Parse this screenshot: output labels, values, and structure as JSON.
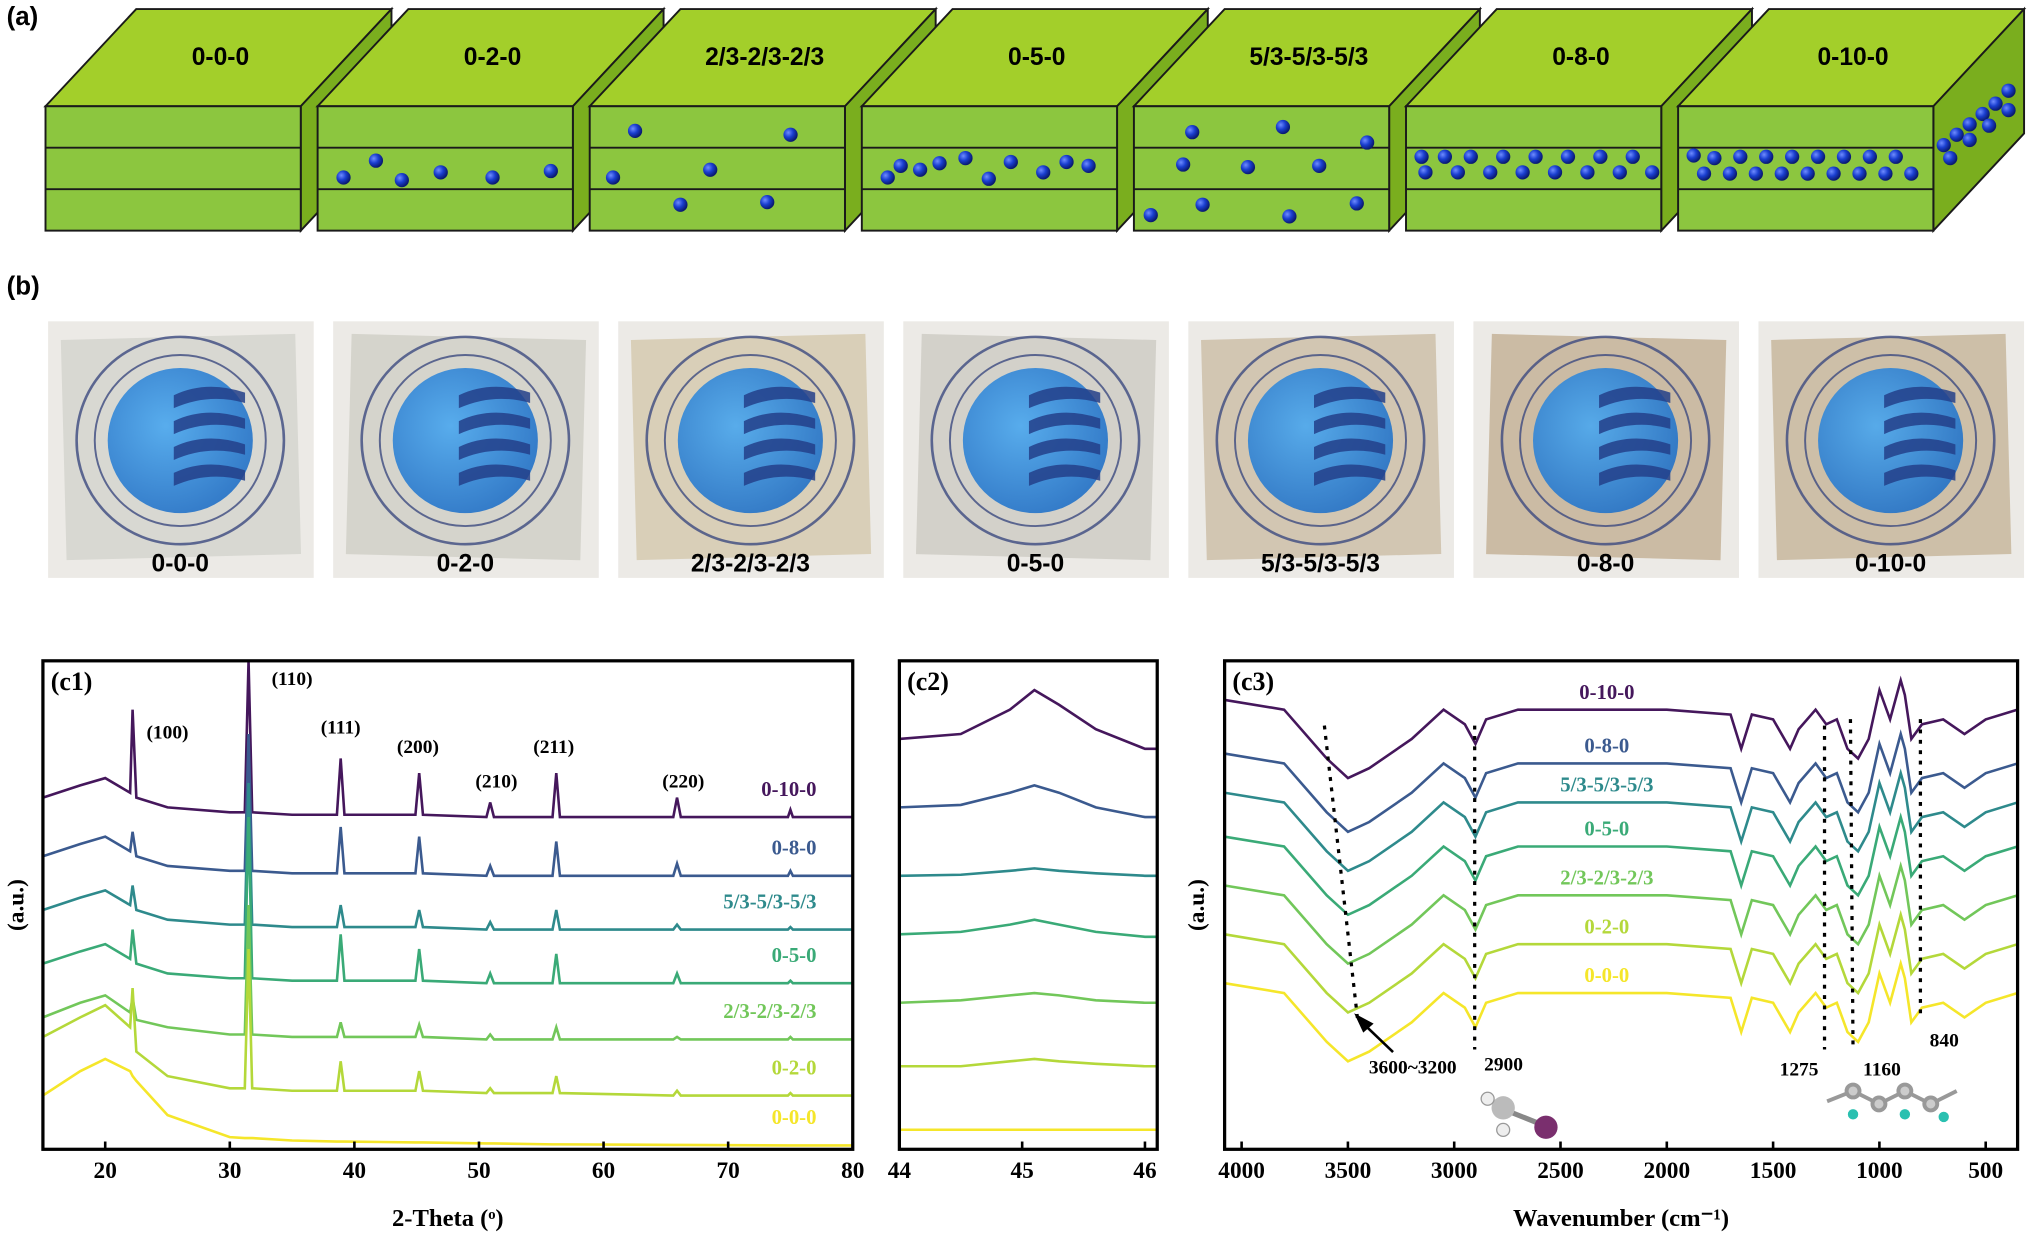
{
  "panels": {
    "a": {
      "label": "(a)",
      "blocks": [
        "0-0-0",
        "0-2-0",
        "2/3-2/3-2/3",
        "0-5-0",
        "5/3-5/3-5/3",
        "0-8-0",
        "0-10-0"
      ]
    },
    "b": {
      "label": "(b)",
      "samples": [
        "0-0-0",
        "0-2-0",
        "2/3-2/3-2/3",
        "0-5-0",
        "5/3-5/3-5/3",
        "0-8-0",
        "0-10-0"
      ]
    }
  },
  "chart_data": [
    {
      "type": "line",
      "panel_label": "(c1)",
      "x_label": "2-Theta (ᵒ)",
      "y_label": "(a.u.)",
      "x": [
        15,
        18,
        20,
        22,
        22.2,
        22.5,
        25,
        30,
        31.2,
        31.5,
        31.8,
        35,
        38.6,
        38.9,
        39.2,
        44.9,
        45.2,
        45.5,
        50.6,
        50.9,
        51.2,
        55.9,
        56.2,
        56.5,
        65.6,
        65.9,
        66.2,
        74.8,
        75,
        75.2,
        80
      ],
      "xlim": [
        15,
        80
      ],
      "ylim": [
        0,
        100
      ],
      "xticks": [
        20,
        30,
        40,
        50,
        60,
        70,
        80
      ],
      "series": [
        {
          "name": "0-10-0",
          "color": "#45175c",
          "values": [
            72,
            74.5,
            76,
            73,
            90,
            72,
            70,
            69,
            69,
            100,
            69,
            68.5,
            68.5,
            80,
            68.5,
            68.5,
            77,
            68.5,
            68,
            71,
            68,
            68,
            77,
            68,
            68,
            72,
            68,
            68,
            69.5,
            68,
            68
          ]
        },
        {
          "name": "0-8-0",
          "color": "#3b5a8f",
          "values": [
            60,
            62.5,
            64,
            61,
            65,
            60,
            58,
            57,
            57,
            85,
            57,
            56.5,
            56.5,
            66,
            56.5,
            56.5,
            64,
            56.5,
            56,
            58,
            56,
            56,
            63,
            56,
            56,
            58.5,
            56,
            56,
            57,
            56,
            56
          ]
        },
        {
          "name": "5/3-5/3-5/3",
          "color": "#2e8a8c",
          "values": [
            49,
            51.5,
            53,
            50,
            54,
            49,
            47,
            46,
            46,
            75,
            46,
            45.5,
            45.5,
            50,
            45.5,
            45.5,
            49,
            45.5,
            45,
            46.5,
            45,
            45,
            49,
            45,
            45,
            46,
            45,
            45,
            45.5,
            45,
            45
          ]
        },
        {
          "name": "0-5-0",
          "color": "#3aaa77",
          "values": [
            38,
            40.5,
            42,
            39,
            45,
            38,
            36,
            35,
            35,
            68,
            35,
            34.5,
            34.5,
            44,
            34.5,
            34.5,
            41,
            34.5,
            34,
            36,
            34,
            34,
            40,
            34,
            34,
            36,
            34,
            34,
            34.5,
            34,
            34
          ]
        },
        {
          "name": "2/3-2/3-2/3",
          "color": "#72c75a",
          "values": [
            27,
            30,
            31.5,
            28,
            31,
            26.5,
            25,
            23.5,
            23.5,
            50,
            23.5,
            23,
            23,
            26,
            23,
            23,
            25.5,
            23,
            22.5,
            23.5,
            22.5,
            22.5,
            25,
            22.5,
            22.5,
            23,
            22.5,
            22.5,
            23,
            22.5,
            22.5
          ]
        },
        {
          "name": "0-2-0",
          "color": "#b4d83a",
          "values": [
            23,
            27,
            29.5,
            25,
            33,
            20,
            15,
            12.5,
            12.5,
            41,
            12.5,
            12,
            12,
            18,
            12,
            12,
            16,
            12,
            11.5,
            12.5,
            11.5,
            11.5,
            15,
            11.5,
            11,
            12,
            11,
            11,
            11.5,
            11,
            11
          ]
        },
        {
          "name": "0-0-0",
          "color": "#f5e62a",
          "values": [
            11,
            16,
            18.5,
            16,
            15,
            14,
            7,
            2.5,
            2.3,
            2.3,
            2.3,
            1.8,
            1.6,
            1.6,
            1.6,
            1.4,
            1.4,
            1.4,
            1.2,
            1.2,
            1.2,
            1,
            1,
            1,
            0.9,
            0.9,
            0.9,
            0.8,
            0.8,
            0.8,
            0.8
          ]
        }
      ],
      "annotations": [
        {
          "text": "(100)",
          "x": 25,
          "y": 85
        },
        {
          "text": "(110)",
          "x": 35,
          "y": 96
        },
        {
          "text": "(111)",
          "x": 38.9,
          "y": 86
        },
        {
          "text": "(200)",
          "x": 45.1,
          "y": 82
        },
        {
          "text": "(210)",
          "x": 51.4,
          "y": 75
        },
        {
          "text": "(211)",
          "x": 56,
          "y": 82
        },
        {
          "text": "(220)",
          "x": 66.4,
          "y": 75
        }
      ]
    },
    {
      "type": "line",
      "panel_label": "(c2)",
      "x": [
        44,
        44.5,
        44.9,
        45.1,
        45.3,
        45.6,
        46,
        46.1
      ],
      "xlim": [
        44,
        46.1
      ],
      "ylim": [
        0,
        100
      ],
      "xticks": [
        44,
        45,
        46
      ],
      "series": [
        {
          "color": "#45175c",
          "values": [
            84,
            85,
            90,
            94,
            91,
            86,
            82,
            82
          ]
        },
        {
          "color": "#3b5a8f",
          "values": [
            70,
            70.5,
            73,
            74.5,
            73,
            70,
            68,
            68
          ]
        },
        {
          "color": "#2e8a8c",
          "values": [
            56,
            56.2,
            57,
            57.5,
            57,
            56.5,
            56,
            56
          ]
        },
        {
          "color": "#3aaa77",
          "values": [
            44,
            44.5,
            46,
            47,
            46,
            44.5,
            43.5,
            43.5
          ]
        },
        {
          "color": "#72c75a",
          "values": [
            30,
            30.5,
            31.5,
            32,
            31.5,
            30.5,
            30,
            30
          ]
        },
        {
          "color": "#b4d83a",
          "values": [
            17,
            17,
            18,
            18.5,
            18,
            17.5,
            17,
            17
          ]
        },
        {
          "color": "#f5e62a",
          "values": [
            4,
            4,
            4,
            4,
            4,
            4,
            4,
            4
          ]
        }
      ]
    },
    {
      "type": "line",
      "panel_label": "(c3)",
      "x_label": "Wavenumber (cm⁻¹)",
      "y_label": "(a.u.)",
      "x": [
        4080,
        3800,
        3600,
        3500,
        3400,
        3200,
        3050,
        2950,
        2900,
        2850,
        2700,
        2000,
        1700,
        1650,
        1600,
        1500,
        1420,
        1380,
        1300,
        1250,
        1200,
        1150,
        1100,
        1050,
        1000,
        950,
        900,
        880,
        850,
        800,
        700,
        600,
        500,
        350
      ],
      "xlim": [
        4080,
        350
      ],
      "ylim": [
        0,
        100
      ],
      "xticks": [
        4000,
        3500,
        3000,
        2500,
        2000,
        1500,
        1000,
        500
      ],
      "series": [
        {
          "name": "0-10-0",
          "color": "#45175c",
          "values": [
            92,
            90,
            80,
            76,
            78,
            84,
            90,
            87,
            83,
            88,
            90,
            90,
            89,
            82,
            89,
            88,
            82,
            86,
            90,
            87,
            88,
            82,
            80,
            84,
            94,
            88,
            96,
            93,
            84,
            87,
            88,
            85,
            88,
            90
          ]
        },
        {
          "name": "0-8-0",
          "color": "#3b5a8f",
          "values": [
            81,
            79,
            69,
            65,
            67,
            73,
            79,
            76,
            72,
            77,
            79,
            79,
            78,
            71,
            78,
            77,
            71,
            75,
            79,
            76,
            77,
            71,
            69,
            73,
            83,
            77,
            85,
            82,
            73,
            76,
            77,
            74,
            77,
            79
          ]
        },
        {
          "name": "5/3-5/3-5/3",
          "color": "#2e8a8c",
          "values": [
            73,
            71,
            61,
            57,
            59,
            65,
            71,
            68,
            64,
            69,
            71,
            71,
            70,
            63,
            70,
            69,
            63,
            67,
            71,
            68,
            69,
            63,
            61,
            65,
            75,
            69,
            77,
            74,
            65,
            68,
            69,
            66,
            69,
            71
          ]
        },
        {
          "name": "0-5-0",
          "color": "#3aaa77",
          "values": [
            64,
            62,
            52,
            48,
            50,
            56,
            62,
            59,
            55,
            60,
            62,
            62,
            61,
            54,
            61,
            60,
            54,
            58,
            62,
            59,
            60,
            54,
            52,
            56,
            66,
            60,
            68,
            65,
            56,
            59,
            60,
            57,
            60,
            62
          ]
        },
        {
          "name": "2/3-2/3-2/3",
          "color": "#72c75a",
          "values": [
            54,
            52,
            42,
            38,
            40,
            46,
            52,
            49,
            45,
            50,
            52,
            52,
            51,
            44,
            51,
            50,
            44,
            48,
            52,
            49,
            50,
            44,
            42,
            46,
            56,
            50,
            58,
            55,
            46,
            49,
            50,
            47,
            50,
            52
          ]
        },
        {
          "name": "0-2-0",
          "color": "#b4d83a",
          "values": [
            44,
            42,
            32,
            28,
            30,
            36,
            42,
            39,
            35,
            40,
            42,
            42,
            41,
            34,
            41,
            40,
            34,
            38,
            42,
            39,
            40,
            34,
            32,
            36,
            46,
            40,
            48,
            45,
            36,
            39,
            40,
            37,
            40,
            42
          ]
        },
        {
          "name": "0-0-0",
          "color": "#f5e62a",
          "values": [
            34,
            32,
            22,
            18,
            20,
            26,
            32,
            29,
            25,
            30,
            32,
            32,
            31,
            24,
            31,
            30,
            24,
            28,
            32,
            29,
            30,
            24,
            22,
            26,
            36,
            30,
            38,
            35,
            26,
            29,
            30,
            27,
            30,
            32
          ]
        }
      ],
      "annotations": [
        {
          "text": "3600~3200",
          "x": 3195,
          "y": 16.4
        },
        {
          "text": "2900",
          "x": 2768,
          "y": 17
        },
        {
          "text": "1275",
          "x": 1378,
          "y": 16
        },
        {
          "text": "1160",
          "x": 988,
          "y": 16
        },
        {
          "text": "840",
          "x": 695,
          "y": 22
        }
      ]
    }
  ]
}
